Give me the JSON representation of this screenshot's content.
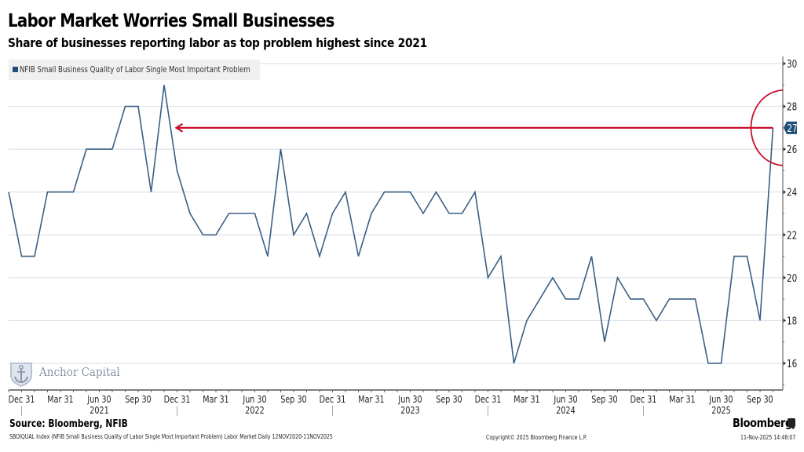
{
  "header": {
    "title": "Labor Market Worries Small Businesses",
    "subtitle": "Share of businesses reporting labor as top problem highest since 2021"
  },
  "watermark": {
    "text": "Anchor Capital",
    "icon": "anchor-shield-icon"
  },
  "footer": {
    "source": "Source: Bloomberg, NFIB",
    "footnote": "SBOIQUAL Index (NFIB Small Business Quality of Labor Single Most Important Problem) Labor Market Daily 12NOV2020-11NOV2025",
    "copyright": "Copyright© 2025 Bloomberg Finance L.P.",
    "brand": "Bloomberg",
    "brand_icon": "bloomberg-terminal-icon",
    "timestamp": "11-Nov-2025 14:48:07"
  },
  "colors": {
    "series": "#3b5f86",
    "annotation": "#c8102e",
    "label_bg": "#1f4e79",
    "grid": "#dde3ec",
    "axis": "#8c8c8c"
  },
  "chart_data": {
    "type": "line",
    "title": "Labor Market Worries Small Businesses",
    "subtitle": "Share of businesses reporting labor as top problem highest since 2021",
    "xlabel": "",
    "ylabel": "",
    "ylim": [
      14.75,
      30.3
    ],
    "yticks": [
      16,
      18,
      20,
      22,
      24,
      26,
      28,
      30
    ],
    "grid": true,
    "y_axis_side": "right",
    "legend_position": "top-left",
    "x": [
      "Nov 2020",
      "Dec 2020",
      "Jan 2021",
      "Feb 2021",
      "Mar 2021",
      "Apr 2021",
      "May 2021",
      "Jun 2021",
      "Jul 2021",
      "Aug 2021",
      "Sep 2021",
      "Oct 2021",
      "Nov 2021",
      "Dec 2021",
      "Jan 2022",
      "Feb 2022",
      "Mar 2022",
      "Apr 2022",
      "May 2022",
      "Jun 2022",
      "Jul 2022",
      "Aug 2022",
      "Sep 2022",
      "Oct 2022",
      "Nov 2022",
      "Dec 2022",
      "Jan 2023",
      "Feb 2023",
      "Mar 2023",
      "Apr 2023",
      "May 2023",
      "Jun 2023",
      "Jul 2023",
      "Aug 2023",
      "Sep 2023",
      "Oct 2023",
      "Nov 2023",
      "Dec 2023",
      "Jan 2024",
      "Feb 2024",
      "Mar 2024",
      "Apr 2024",
      "May 2024",
      "Jun 2024",
      "Jul 2024",
      "Aug 2024",
      "Sep 2024",
      "Oct 2024",
      "Nov 2024",
      "Dec 2024",
      "Jan 2025",
      "Feb 2025",
      "Mar 2025",
      "Apr 2025",
      "May 2025",
      "Jun 2025",
      "Jul 2025",
      "Aug 2025",
      "Sep 2025",
      "Oct 2025"
    ],
    "series": [
      {
        "name": "NFIB Small Business Quality of Labor Single Most Important Problem",
        "values": [
          24,
          21,
          21,
          24,
          24,
          24,
          26,
          26,
          26,
          28,
          28,
          24,
          29,
          25,
          23,
          22,
          22,
          23,
          23,
          23,
          21,
          26,
          22,
          23,
          21,
          23,
          24,
          21,
          23,
          24,
          24,
          24,
          23,
          24,
          23,
          23,
          24,
          20,
          21,
          16,
          18,
          19,
          20,
          19,
          19,
          21,
          17,
          20,
          19,
          19,
          18,
          19,
          19,
          19,
          16,
          16,
          21,
          21,
          18,
          27
        ]
      }
    ],
    "last_value_label": "27",
    "x_tick_labels": [
      {
        "label": "Dec 31",
        "index": 1
      },
      {
        "label": "Mar 31",
        "index": 4
      },
      {
        "label": "Jun 30",
        "index": 7
      },
      {
        "label": "Sep 30",
        "index": 10
      },
      {
        "label": "Dec 31",
        "index": 13
      },
      {
        "label": "Mar 31",
        "index": 16
      },
      {
        "label": "Jun 30",
        "index": 19
      },
      {
        "label": "Sep 30",
        "index": 22
      },
      {
        "label": "Dec 31",
        "index": 25
      },
      {
        "label": "Mar 31",
        "index": 28
      },
      {
        "label": "Jun 30",
        "index": 31
      },
      {
        "label": "Sep 30",
        "index": 34
      },
      {
        "label": "Dec 31",
        "index": 37
      },
      {
        "label": "Mar 31",
        "index": 40
      },
      {
        "label": "Jun 30",
        "index": 43
      },
      {
        "label": "Sep 30",
        "index": 46
      },
      {
        "label": "Dec 31",
        "index": 49
      },
      {
        "label": "Mar 31",
        "index": 52
      },
      {
        "label": "Jun 30",
        "index": 55
      },
      {
        "label": "Sep 30",
        "index": 58
      }
    ],
    "year_labels": [
      {
        "label": "2021",
        "index": 7
      },
      {
        "label": "2022",
        "index": 19
      },
      {
        "label": "2023",
        "index": 31
      },
      {
        "label": "2024",
        "index": 43
      },
      {
        "label": "2025",
        "index": 55
      }
    ],
    "year_separators": [
      1,
      13,
      25,
      37,
      49
    ],
    "annotations": [
      {
        "type": "arrow",
        "from_index": 59,
        "to_index": 13,
        "value": 27,
        "description": "current level highest since Dec 2021"
      },
      {
        "type": "circle",
        "index": 59,
        "value": 27,
        "description": "latest reading highlighted"
      }
    ]
  }
}
